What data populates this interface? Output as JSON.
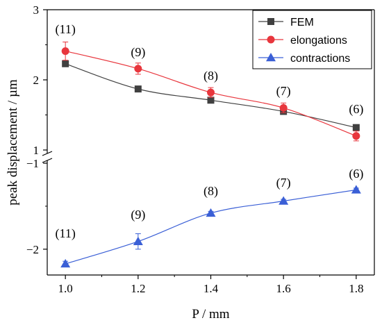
{
  "chart_data": {
    "type": "line",
    "xlabel": "P / mm",
    "ylabel": "peak displacement / µm",
    "x_ticks": [
      1.0,
      1.2,
      1.4,
      1.6,
      1.8
    ],
    "x_tick_labels": [
      "1.0",
      "1.2",
      "1.4",
      "1.6",
      "1.8"
    ],
    "xlim": [
      0.95,
      1.85
    ],
    "axis_break": true,
    "upper_panel": {
      "ylim": [
        1,
        3
      ],
      "y_ticks": [
        1,
        2,
        3
      ],
      "y_tick_labels": [
        "1",
        "2",
        "3"
      ]
    },
    "lower_panel": {
      "ylim": [
        -2.3,
        -1
      ],
      "y_ticks": [
        -2,
        -1
      ],
      "y_tick_labels": [
        "−2",
        "−1"
      ]
    },
    "legend": {
      "position": "top-right"
    },
    "series": [
      {
        "name": "FEM",
        "panel": "upper",
        "color": "#404040",
        "marker": "square",
        "x": [
          1.0,
          1.2,
          1.4,
          1.6,
          1.8
        ],
        "y": [
          2.23,
          1.87,
          1.71,
          1.55,
          1.32
        ]
      },
      {
        "name": "elongations",
        "panel": "upper",
        "color": "#e8363d",
        "marker": "circle",
        "x": [
          1.0,
          1.2,
          1.4,
          1.6,
          1.8
        ],
        "y": [
          2.41,
          2.16,
          1.82,
          1.6,
          1.2
        ],
        "error": [
          0.13,
          0.08,
          0.07,
          0.07,
          0.07
        ]
      },
      {
        "name": "contractions",
        "panel": "lower",
        "color": "#3a5fd6",
        "marker": "triangle",
        "x": [
          1.0,
          1.2,
          1.4,
          1.6,
          1.8
        ],
        "y": [
          -2.17,
          -1.91,
          -1.58,
          -1.44,
          -1.31
        ],
        "error": [
          0.03,
          0.09,
          0.02,
          0.02,
          0.02
        ]
      }
    ],
    "annotations": {
      "upper": [
        "(11)",
        "(9)",
        "(8)",
        "(7)",
        "(6)"
      ],
      "lower": [
        "(11)",
        "(9)",
        "(8)",
        "(7)",
        "(6)"
      ]
    }
  }
}
